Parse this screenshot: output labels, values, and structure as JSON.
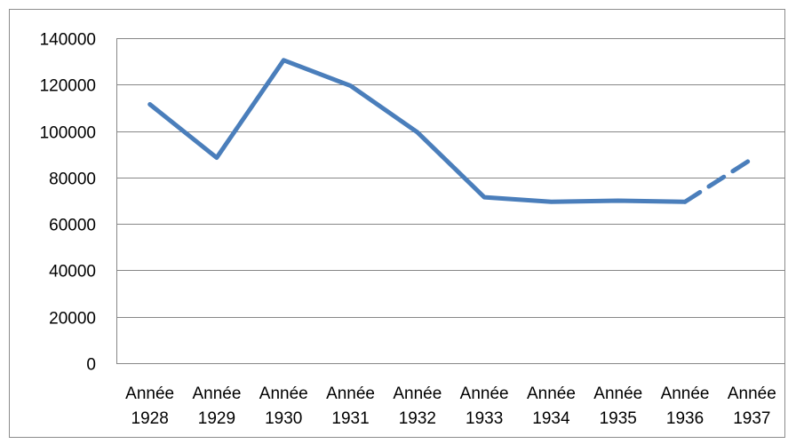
{
  "chart_data": {
    "type": "line",
    "title": "",
    "xlabel": "",
    "ylabel": "",
    "categories": [
      [
        "Année",
        "1928"
      ],
      [
        "Année",
        "1929"
      ],
      [
        "Année",
        "1930"
      ],
      [
        "Année",
        "1931"
      ],
      [
        "Année",
        "1932"
      ],
      [
        "Année",
        "1933"
      ],
      [
        "Année",
        "1934"
      ],
      [
        "Année",
        "1935"
      ],
      [
        "Année",
        "1936"
      ],
      [
        "Année",
        "1937"
      ]
    ],
    "series": [
      {
        "values": [
          111500,
          88500,
          130500,
          119500,
          99500,
          71500,
          69500,
          70000,
          69500,
          88000
        ],
        "color": "#4a7ebb",
        "dashed_last_segment": true
      }
    ],
    "ylim": [
      0,
      140000
    ],
    "yticks": [
      "0",
      "20000",
      "40000",
      "60000",
      "80000",
      "100000",
      "120000",
      "140000"
    ],
    "grid": true,
    "legend": "none"
  }
}
